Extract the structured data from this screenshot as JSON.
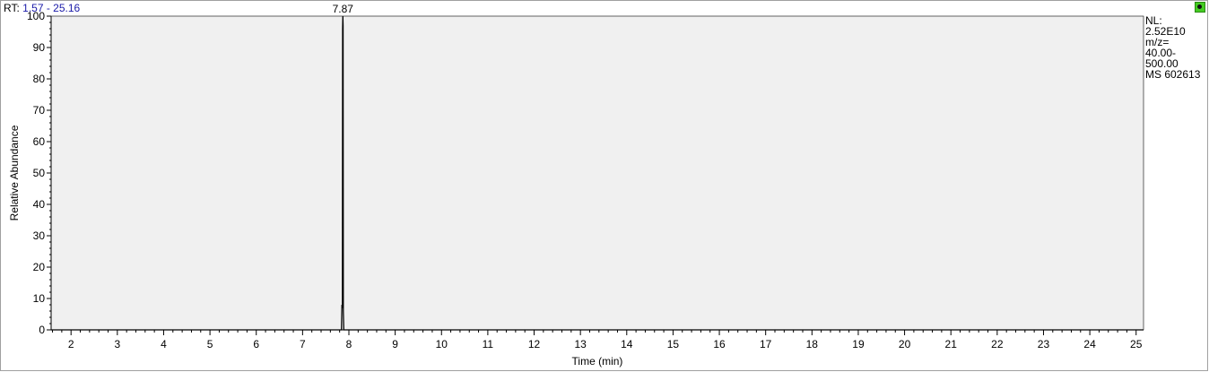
{
  "header": {
    "rt_prefix": "RT:",
    "rt_range": "1.57 - 25.16"
  },
  "info": {
    "lines": [
      "NL:",
      "2.52E10",
      "m/z=",
      "40.00-",
      "500.00",
      "MS 602613"
    ]
  },
  "status_icon": "green-status-icon",
  "chart_data": {
    "type": "line",
    "xlabel": "Time (min)",
    "ylabel": "Relative Abundance",
    "xlim": [
      1.57,
      25.16
    ],
    "ylim": [
      0,
      100
    ],
    "x_ticks": [
      2,
      3,
      4,
      5,
      6,
      7,
      8,
      9,
      10,
      11,
      12,
      13,
      14,
      15,
      16,
      17,
      18,
      19,
      20,
      21,
      22,
      23,
      24,
      25
    ],
    "y_ticks": [
      0,
      10,
      20,
      30,
      40,
      50,
      60,
      70,
      80,
      90,
      100
    ],
    "peaks": [
      {
        "x": 7.87,
        "y": 100,
        "label": "7.87"
      }
    ],
    "series": [
      {
        "values": [
          [
            1.57,
            0
          ],
          [
            7.84,
            0
          ],
          [
            7.85,
            8
          ],
          [
            7.86,
            7
          ],
          [
            7.865,
            96
          ],
          [
            7.87,
            100
          ],
          [
            7.875,
            97
          ],
          [
            7.88,
            6
          ],
          [
            7.89,
            0
          ],
          [
            25.16,
            0
          ]
        ]
      }
    ],
    "colors": {
      "plot_bg": "#f0f0f0",
      "trace": "#000000",
      "header_value": "#1a1aa8"
    }
  }
}
